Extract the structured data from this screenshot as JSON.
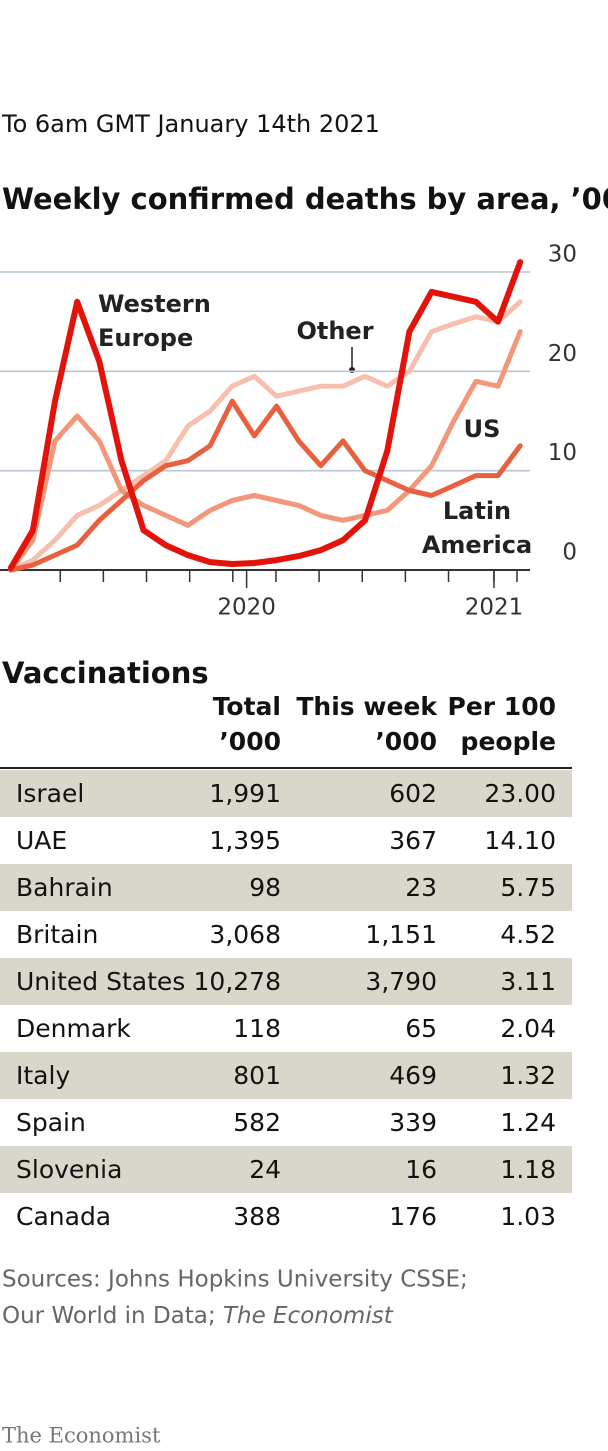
{
  "chart_data": {
    "type": "line",
    "subtitle": "To 6am GMT January 14th 2021",
    "title": "Weekly confirmed deaths by area, ’000",
    "x": [
      2020.16,
      2020.1985,
      2020.237,
      2020.2755,
      2020.314,
      2020.3525,
      2020.391,
      2020.4295,
      2020.468,
      2020.5065,
      2020.545,
      2020.5835,
      2020.622,
      2020.6605,
      2020.699,
      2020.7375,
      2020.776,
      2020.8145,
      2020.853,
      2020.8915,
      2020.93,
      2020.9685,
      2021.007,
      2021.0455
    ],
    "series": [
      {
        "name": "Other",
        "color": "#f7bfae",
        "values": [
          0,
          1,
          3,
          5.5,
          6.5,
          8,
          9.5,
          11,
          14.5,
          16,
          18.5,
          19.5,
          17.5,
          18,
          18.5,
          18.5,
          19.5,
          18.5,
          20,
          24,
          24.8,
          25.5,
          25,
          27
        ]
      },
      {
        "name": "US",
        "color": "#f4967a",
        "values": [
          0,
          3,
          13,
          15.5,
          13,
          8,
          6.5,
          5.5,
          4.5,
          6,
          7,
          7.5,
          7,
          6.5,
          5.5,
          5,
          5.5,
          6,
          8,
          10.5,
          15,
          19,
          18.5,
          24
        ]
      },
      {
        "name": "Latin America",
        "color": "#e8603f",
        "values": [
          0,
          0.5,
          1.5,
          2.5,
          5,
          7,
          9,
          10.5,
          11,
          12.5,
          17,
          13.5,
          16.5,
          13,
          10.5,
          13,
          10,
          9,
          8,
          7.5,
          8.5,
          9.5,
          9.5,
          12.5
        ]
      },
      {
        "name": "Western Europe",
        "color": "#e3120b",
        "values": [
          0.2,
          4,
          17,
          27,
          21,
          11,
          4,
          2.5,
          1.5,
          0.8,
          0.6,
          0.7,
          1,
          1.4,
          2,
          3,
          5,
          12,
          24,
          28,
          27.5,
          27,
          25,
          31
        ]
      }
    ],
    "xlim": [
      2020.15,
      2021.08
    ],
    "xticks": [
      {
        "value": 2020.57,
        "label": "2020"
      },
      {
        "value": 2021,
        "label": "2021"
      }
    ],
    "xminorticks": [
      2020.246,
      2020.321,
      2020.396,
      2020.471,
      2020.546,
      2020.621,
      2020.696,
      2020.771,
      2020.846,
      2020.921,
      2021,
      2021.04
    ],
    "ylim": [
      0,
      30
    ],
    "yticks": [
      0,
      10,
      20,
      30
    ],
    "grid": true
  },
  "table": {
    "title": "Vaccinations",
    "header": [
      [
        "Total",
        "’000"
      ],
      [
        "This week",
        "’000"
      ],
      [
        "Per 100",
        "people"
      ]
    ],
    "rows": [
      [
        "Israel",
        "1,991",
        "602",
        "23.00"
      ],
      [
        "UAE",
        "1,395",
        "367",
        "14.10"
      ],
      [
        "Bahrain",
        "98",
        "23",
        "5.75"
      ],
      [
        "Britain",
        "3,068",
        "1,151",
        "4.52"
      ],
      [
        "United States",
        "10,278",
        "3,790",
        "3.11"
      ],
      [
        "Denmark",
        "118",
        "65",
        "2.04"
      ],
      [
        "Italy",
        "801",
        "469",
        "1.32"
      ],
      [
        "Spain",
        "582",
        "339",
        "1.24"
      ],
      [
        "Slovenia",
        "24",
        "16",
        "1.18"
      ],
      [
        "Canada",
        "388",
        "176",
        "1.03"
      ]
    ]
  },
  "footer": {
    "sources": [
      "Sources: Johns Hopkins University CSSE;",
      "Our World in Data;",
      "The Economist"
    ],
    "brand": "The Economist"
  }
}
